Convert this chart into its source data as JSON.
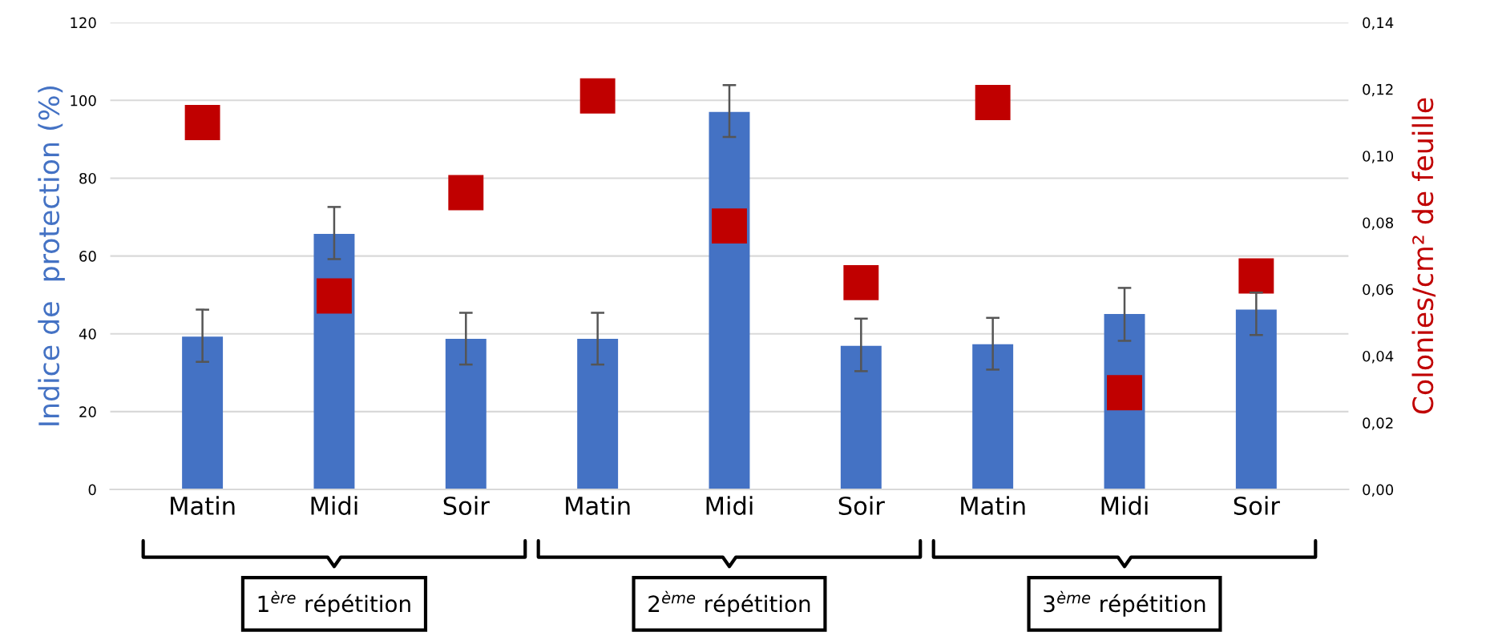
{
  "chart_data": {
    "type": "bar",
    "categories": [
      "Matin",
      "Midi",
      "Soir",
      "Matin",
      "Midi",
      "Soir",
      "Matin",
      "Midi",
      "Soir"
    ],
    "ylabel": "Indice de  protection (%)",
    "y2label": "Colonies/cm² de feuille",
    "series": [
      {
        "color": "#4472c4",
        "values": [
          39.3,
          65.7,
          38.7,
          38.7,
          97.0,
          36.9,
          37.3,
          45.1,
          46.2
        ],
        "errors": [
          [
            32.8,
            46.2
          ],
          [
            59.2,
            72.6
          ],
          [
            32.1,
            45.4
          ],
          [
            32.1,
            45.4
          ],
          [
            90.6,
            103.9
          ],
          [
            30.4,
            43.9
          ],
          [
            30.8,
            44.1
          ],
          [
            38.2,
            51.8
          ],
          [
            39.7,
            50.6
          ]
        ]
      },
      {
        "type": "scatter",
        "axis": "y2",
        "color": "#c00000",
        "marker": "square",
        "values": [
          0.11,
          0.058,
          0.089,
          0.118,
          0.079,
          0.062,
          0.116,
          0.029,
          0.064
        ]
      }
    ],
    "ylim": [
      0,
      120
    ],
    "yticks": [
      0,
      20,
      40,
      60,
      80,
      100,
      120
    ],
    "y2lim": [
      0,
      0.14
    ],
    "y2ticks": [
      {
        "value": 0,
        "label": "0,00"
      },
      {
        "value": 0.02,
        "label": "0,02"
      },
      {
        "value": 0.04,
        "label": "0,04"
      },
      {
        "value": 0.06,
        "label": "0,06"
      },
      {
        "value": 0.08,
        "label": "0,08"
      },
      {
        "value": 0.1,
        "label": "0,10"
      },
      {
        "value": 0.12,
        "label": "0,12"
      },
      {
        "value": 0.14,
        "label": "0,14"
      }
    ],
    "grid": "y",
    "annotations": [
      "1$^{ère}$ répétition",
      "2$^{ème}$ répétition",
      "3$^{ème}$ répétition"
    ]
  }
}
